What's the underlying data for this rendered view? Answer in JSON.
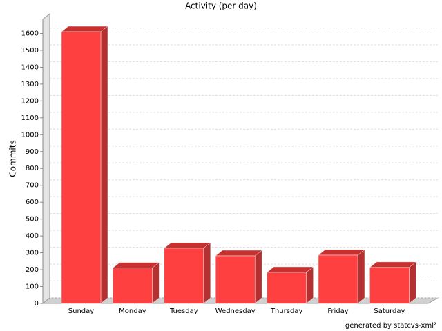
{
  "chart_data": {
    "type": "bar3d",
    "title": "Activity (per day)",
    "y_label": "Commits",
    "credit": "generated by statcvs-xml²",
    "categories": [
      "Sunday",
      "Monday",
      "Tuesday",
      "Wednesday",
      "Thursday",
      "Friday",
      "Saturday"
    ],
    "values": [
      1610,
      210,
      327,
      282,
      184,
      286,
      213
    ],
    "color": "#ff4040",
    "ylim": [
      0,
      1700
    ],
    "yticks": [
      0,
      100,
      200,
      300,
      400,
      500,
      600,
      700,
      800,
      900,
      1000,
      1100,
      1200,
      1300,
      1400,
      1500,
      1600
    ],
    "grid": true
  }
}
